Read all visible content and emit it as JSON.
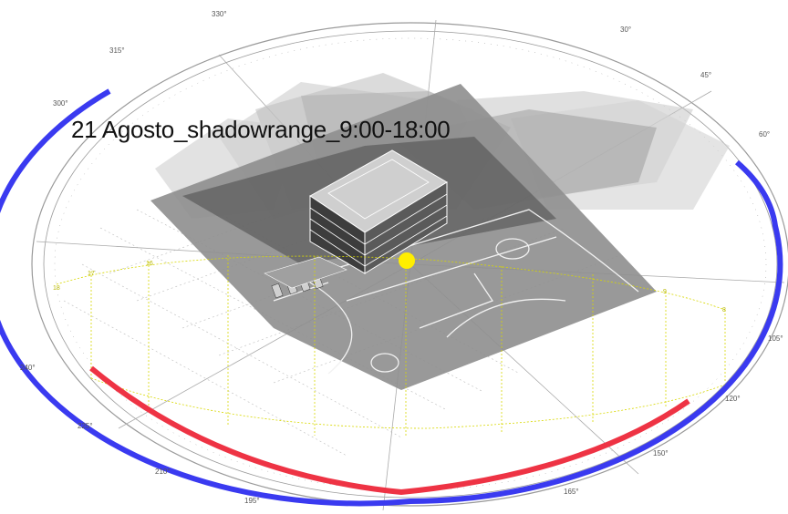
{
  "title": "21 Agosto_shadowrange_9:00-18:00",
  "compass_labels": [
    "330°",
    "30°",
    "45°",
    "60°",
    "315°",
    "300°",
    "240°",
    "225°",
    "210°",
    "195°",
    "165°",
    "150°",
    "120°",
    "105°"
  ],
  "hour_labels": [
    "18",
    "17",
    "16",
    "9",
    "8"
  ],
  "colors": {
    "sun": "#ffee00",
    "arc_blue": "#3a3af0",
    "arc_red": "#ee3344",
    "sunpath": "#d8d800",
    "ground": "#8a8a8a",
    "shadow": "#4a4a4a"
  }
}
